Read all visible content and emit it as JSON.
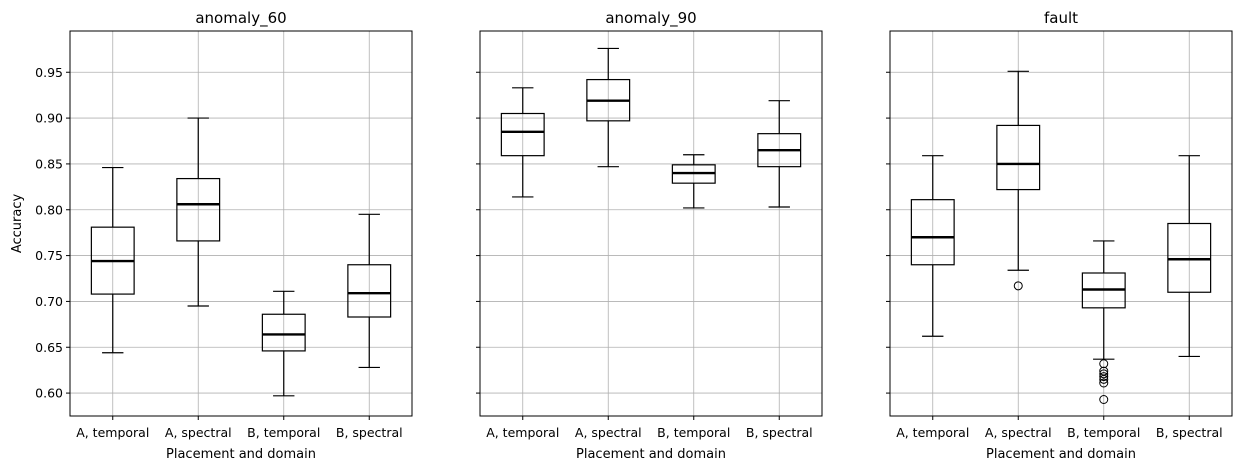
{
  "chart_data": {
    "type": "box",
    "ylabel": "Accuracy",
    "ylim": [
      0.575,
      0.995
    ],
    "yticks": [
      "0.60",
      "0.65",
      "0.70",
      "0.75",
      "0.80",
      "0.85",
      "0.90",
      "0.95"
    ],
    "sharey": true,
    "grid": true,
    "categories": [
      "A, temporal",
      "A, spectral",
      "B, temporal",
      "B, spectral"
    ],
    "xlabel": "Placement and domain",
    "panels": [
      {
        "title": "anomaly_60",
        "boxes": [
          {
            "whislo": 0.644,
            "q1": 0.708,
            "med": 0.744,
            "q3": 0.781,
            "whishi": 0.846,
            "fliers": []
          },
          {
            "whislo": 0.695,
            "q1": 0.766,
            "med": 0.806,
            "q3": 0.834,
            "whishi": 0.9,
            "fliers": []
          },
          {
            "whislo": 0.597,
            "q1": 0.646,
            "med": 0.664,
            "q3": 0.686,
            "whishi": 0.711,
            "fliers": []
          },
          {
            "whislo": 0.628,
            "q1": 0.683,
            "med": 0.709,
            "q3": 0.74,
            "whishi": 0.795,
            "fliers": []
          }
        ]
      },
      {
        "title": "anomaly_90",
        "boxes": [
          {
            "whislo": 0.814,
            "q1": 0.859,
            "med": 0.885,
            "q3": 0.905,
            "whishi": 0.933,
            "fliers": []
          },
          {
            "whislo": 0.847,
            "q1": 0.897,
            "med": 0.919,
            "q3": 0.942,
            "whishi": 0.976,
            "fliers": []
          },
          {
            "whislo": 0.802,
            "q1": 0.829,
            "med": 0.84,
            "q3": 0.849,
            "whishi": 0.86,
            "fliers": []
          },
          {
            "whislo": 0.803,
            "q1": 0.847,
            "med": 0.865,
            "q3": 0.883,
            "whishi": 0.919,
            "fliers": []
          }
        ]
      },
      {
        "title": "fault",
        "boxes": [
          {
            "whislo": 0.662,
            "q1": 0.74,
            "med": 0.77,
            "q3": 0.811,
            "whishi": 0.859,
            "fliers": []
          },
          {
            "whislo": 0.734,
            "q1": 0.822,
            "med": 0.85,
            "q3": 0.892,
            "whishi": 0.951,
            "fliers": [
              0.717
            ]
          },
          {
            "whislo": 0.637,
            "q1": 0.693,
            "med": 0.713,
            "q3": 0.731,
            "whishi": 0.766,
            "fliers": [
              0.632,
              0.624,
              0.621,
              0.618,
              0.615,
              0.611,
              0.593
            ]
          },
          {
            "whislo": 0.64,
            "q1": 0.71,
            "med": 0.746,
            "q3": 0.785,
            "whishi": 0.859,
            "fliers": []
          }
        ]
      }
    ]
  }
}
